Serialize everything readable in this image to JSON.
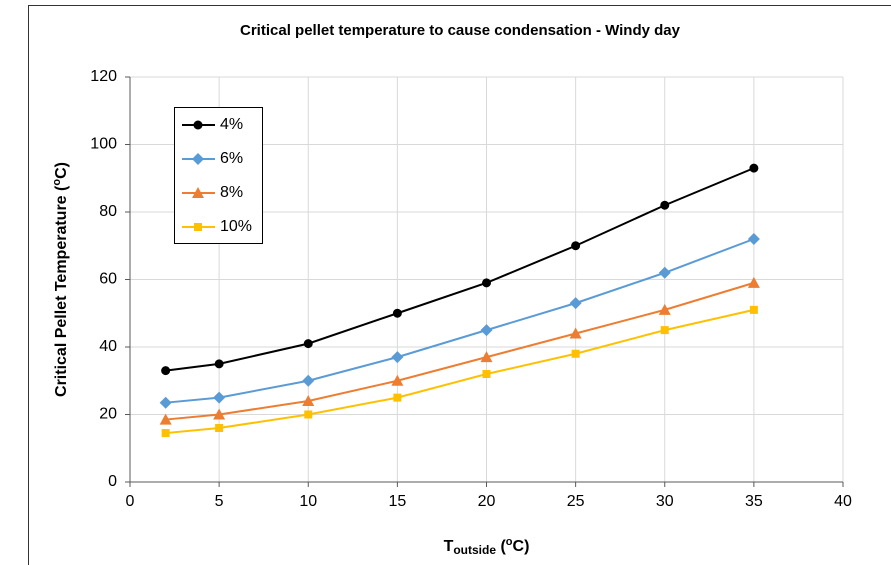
{
  "chart_data": {
    "type": "line",
    "title": "Critical pellet temperature to cause condensation - Windy day",
    "xlabel": [
      "T",
      "outside",
      " (",
      "o",
      "C)"
    ],
    "ylabel": [
      "Critical Pellet Temperature (",
      "o",
      "C)"
    ],
    "x": [
      2,
      5,
      10,
      15,
      20,
      25,
      30,
      35
    ],
    "series": [
      {
        "name": "4%",
        "color": "#000000",
        "marker": "circle",
        "values": [
          33,
          35,
          41,
          50,
          59,
          70,
          82,
          93
        ]
      },
      {
        "name": "6%",
        "color": "#5b9bd5",
        "marker": "diamond",
        "values": [
          23.5,
          25,
          30,
          37,
          45,
          53,
          62,
          72
        ]
      },
      {
        "name": "8%",
        "color": "#ed7d31",
        "marker": "triangle",
        "values": [
          18.5,
          20,
          24,
          30,
          37,
          44,
          51,
          59
        ]
      },
      {
        "name": "10%",
        "color": "#ffc000",
        "marker": "square",
        "values": [
          14.5,
          16,
          20,
          25,
          32,
          38,
          45,
          51
        ]
      }
    ],
    "xlim": [
      0,
      40
    ],
    "xticks": [
      0,
      5,
      10,
      15,
      20,
      25,
      30,
      35,
      40
    ],
    "ylim": [
      0,
      120
    ],
    "yticks": [
      0,
      20,
      40,
      60,
      80,
      100,
      120
    ],
    "grid": true,
    "legend": "upper left"
  }
}
